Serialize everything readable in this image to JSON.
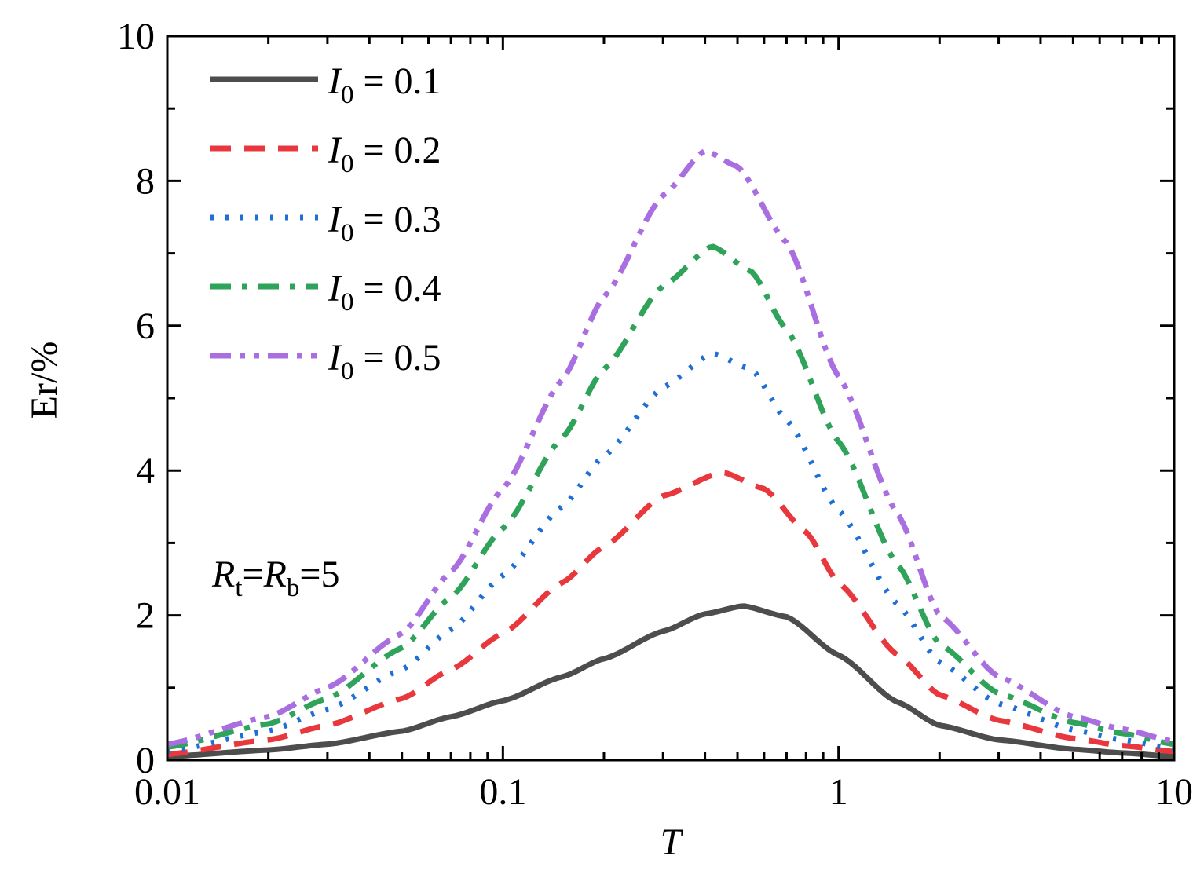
{
  "chart_data": {
    "type": "line",
    "xscale": "log",
    "xlabel": "T",
    "ylabel": "Er/%",
    "xlim": [
      0.01,
      10
    ],
    "ylim": [
      0,
      10
    ],
    "x_ticks": [
      {
        "value": 0.01,
        "label": "0.01"
      },
      {
        "value": 0.1,
        "label": "0.1"
      },
      {
        "value": 1,
        "label": "1"
      },
      {
        "value": 10,
        "label": "10"
      }
    ],
    "y_ticks": [
      {
        "value": 0,
        "label": "0"
      },
      {
        "value": 2,
        "label": "2"
      },
      {
        "value": 4,
        "label": "4"
      },
      {
        "value": 6,
        "label": "6"
      },
      {
        "value": 8,
        "label": "8"
      },
      {
        "value": 10,
        "label": "10"
      }
    ],
    "annotation": {
      "r1": "R",
      "s1": "t",
      "eq1": "=",
      "r2": "R",
      "s2": "b",
      "eq2": "=5"
    },
    "legend_position": "top-left",
    "series": [
      {
        "name": "I0 = 0.1",
        "sym": "I",
        "sub": "0",
        "eq": " = 0.1",
        "color": "#4d4d4d",
        "dash": "solid",
        "peak": 2.13,
        "center": 0.52,
        "x": [
          0.01,
          0.02,
          0.03,
          0.05,
          0.07,
          0.1,
          0.15,
          0.2,
          0.3,
          0.4,
          0.52,
          0.7,
          1,
          1.5,
          2,
          3,
          5,
          7,
          10
        ],
        "y": [
          0.05,
          0.14,
          0.22,
          0.4,
          0.6,
          0.82,
          1.15,
          1.4,
          1.78,
          2.02,
          2.13,
          1.98,
          1.45,
          0.8,
          0.48,
          0.28,
          0.15,
          0.1,
          0.05
        ]
      },
      {
        "name": "I0 = 0.2",
        "sym": "I",
        "sub": "0",
        "eq": " = 0.2",
        "color": "#e8383d",
        "dash": "dash",
        "peak": 3.98,
        "center": 0.45,
        "x": [
          0.01,
          0.02,
          0.03,
          0.05,
          0.07,
          0.1,
          0.15,
          0.2,
          0.3,
          0.45,
          0.6,
          0.8,
          1,
          1.5,
          2,
          3,
          5,
          7,
          10
        ],
        "y": [
          0.08,
          0.28,
          0.48,
          0.85,
          1.25,
          1.75,
          2.45,
          2.95,
          3.65,
          3.98,
          3.75,
          3.15,
          2.45,
          1.45,
          0.9,
          0.55,
          0.3,
          0.2,
          0.12
        ]
      },
      {
        "name": "I0 = 0.3",
        "sym": "I",
        "sub": "0",
        "eq": " = 0.3",
        "color": "#1f6fd6",
        "dash": "dot",
        "peak": 5.62,
        "center": 0.42,
        "x": [
          0.01,
          0.02,
          0.03,
          0.05,
          0.07,
          0.1,
          0.15,
          0.2,
          0.3,
          0.42,
          0.55,
          0.7,
          1,
          1.5,
          2,
          3,
          5,
          7,
          10
        ],
        "y": [
          0.12,
          0.4,
          0.7,
          1.25,
          1.8,
          2.55,
          3.5,
          4.2,
          5.15,
          5.62,
          5.4,
          4.7,
          3.45,
          2.15,
          1.35,
          0.78,
          0.42,
          0.28,
          0.16
        ]
      },
      {
        "name": "I0 = 0.4",
        "sym": "I",
        "sub": "0",
        "eq": " = 0.4",
        "color": "#2fa35a",
        "dash": "dashdot",
        "peak": 7.1,
        "center": 0.42,
        "x": [
          0.01,
          0.02,
          0.03,
          0.05,
          0.07,
          0.1,
          0.15,
          0.2,
          0.3,
          0.42,
          0.55,
          0.7,
          1,
          1.5,
          2,
          3,
          5,
          7,
          10
        ],
        "y": [
          0.18,
          0.5,
          0.85,
          1.55,
          2.25,
          3.2,
          4.45,
          5.4,
          6.55,
          7.1,
          6.75,
          5.95,
          4.4,
          2.7,
          1.6,
          0.92,
          0.52,
          0.37,
          0.22
        ]
      },
      {
        "name": "I0 = 0.5",
        "sym": "I",
        "sub": "0",
        "eq": " = 0.5",
        "color": "#a96ee0",
        "dash": "dashdotdot",
        "peak": 8.42,
        "center": 0.4,
        "x": [
          0.01,
          0.02,
          0.03,
          0.05,
          0.07,
          0.1,
          0.15,
          0.2,
          0.3,
          0.4,
          0.5,
          0.7,
          1,
          1.5,
          2,
          3,
          5,
          7,
          10
        ],
        "y": [
          0.22,
          0.6,
          1.0,
          1.75,
          2.6,
          3.75,
          5.25,
          6.4,
          7.8,
          8.42,
          8.2,
          7.15,
          5.3,
          3.4,
          2.0,
          1.15,
          0.6,
          0.43,
          0.26
        ]
      }
    ]
  }
}
